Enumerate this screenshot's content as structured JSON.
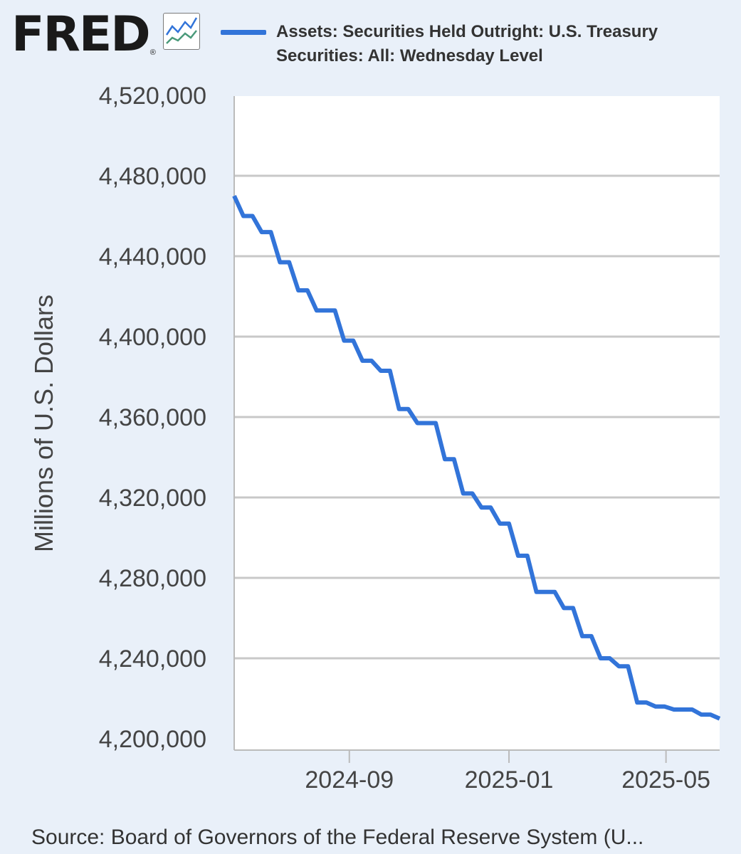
{
  "header": {
    "logo_text": "FRED",
    "logo_registered": "®",
    "logo_icon": "line-chart-icon"
  },
  "legend": {
    "series_label_line1": "Assets: Securities Held Outright: U.S. Treasury",
    "series_label_line2": "Securities: All: Wednesday Level",
    "color": "#3274d9"
  },
  "footer": {
    "source": "Source: Board of Governors of the Federal Reserve System (U..."
  },
  "chart_data": {
    "type": "line",
    "title": "",
    "xlabel": "",
    "ylabel": "Millions of U.S. Dollars",
    "ylim": [
      4200000,
      4520000
    ],
    "xlim": [
      "2024-06-05",
      "2025-06-11"
    ],
    "y_ticks": [
      4200000,
      4240000,
      4280000,
      4320000,
      4360000,
      4400000,
      4440000,
      4480000,
      4520000
    ],
    "y_tick_labels": [
      "4,200,000",
      "4,240,000",
      "4,280,000",
      "4,320,000",
      "4,360,000",
      "4,400,000",
      "4,440,000",
      "4,480,000",
      "4,520,000"
    ],
    "x_ticks": [
      "2024-09-01",
      "2025-01-01",
      "2025-05-01"
    ],
    "x_tick_labels": [
      "2024-09",
      "2025-01",
      "2025-05"
    ],
    "grid": "horizontal",
    "legend_position": "top",
    "series": [
      {
        "name": "Assets: Securities Held Outright: U.S. Treasury Securities: All: Wednesday Level",
        "color": "#3274d9",
        "x": [
          "2024-06-05",
          "2024-06-12",
          "2024-06-19",
          "2024-06-26",
          "2024-07-03",
          "2024-07-10",
          "2024-07-17",
          "2024-07-24",
          "2024-07-31",
          "2024-08-07",
          "2024-08-14",
          "2024-08-21",
          "2024-08-28",
          "2024-09-04",
          "2024-09-11",
          "2024-09-18",
          "2024-09-25",
          "2024-10-02",
          "2024-10-09",
          "2024-10-16",
          "2024-10-23",
          "2024-10-30",
          "2024-11-06",
          "2024-11-13",
          "2024-11-20",
          "2024-11-27",
          "2024-12-04",
          "2024-12-11",
          "2024-12-18",
          "2024-12-25",
          "2025-01-01",
          "2025-01-08",
          "2025-01-15",
          "2025-01-22",
          "2025-01-29",
          "2025-02-05",
          "2025-02-12",
          "2025-02-19",
          "2025-02-26",
          "2025-03-05",
          "2025-03-12",
          "2025-03-19",
          "2025-03-26",
          "2025-04-02",
          "2025-04-09",
          "2025-04-16",
          "2025-04-23",
          "2025-04-30",
          "2025-05-07",
          "2025-05-14",
          "2025-05-21",
          "2025-05-28",
          "2025-06-04",
          "2025-06-11"
        ],
        "values": [
          4470000,
          4460000,
          4460000,
          4452000,
          4452000,
          4437000,
          4437000,
          4423000,
          4423000,
          4413000,
          4413000,
          4413000,
          4398000,
          4398000,
          4388000,
          4388000,
          4383000,
          4383000,
          4364000,
          4364000,
          4357000,
          4357000,
          4357000,
          4339000,
          4339000,
          4322000,
          4322000,
          4315000,
          4315000,
          4307000,
          4307000,
          4291000,
          4291000,
          4273000,
          4273000,
          4273000,
          4265000,
          4265000,
          4251000,
          4251000,
          4240000,
          4240000,
          4236000,
          4236000,
          4218000,
          4218000,
          4216000,
          4216000,
          4214500,
          4214500,
          4214500,
          4212000,
          4212000,
          4210000
        ]
      }
    ]
  }
}
